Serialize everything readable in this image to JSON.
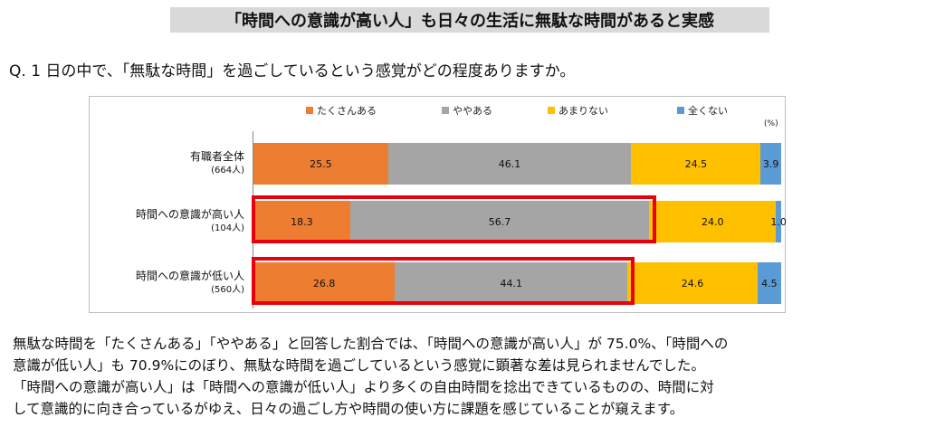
{
  "title": "「時間への意識が高い人」も日々の生活に無駄な時間があると実感",
  "question": "Q. 1 日の中で、「無駄な時間」を過ごしているという感覚がどの程度ありますか。",
  "chart_data": {
    "type": "bar",
    "orientation": "horizontal-stacked-100",
    "unit": "(%)",
    "categories": [
      {
        "label": "有職者全体",
        "n": "(664人)"
      },
      {
        "label": "時間への意識が高い人",
        "n": "(104人)"
      },
      {
        "label": "時間への意識が低い人",
        "n": "(560人)"
      }
    ],
    "series": [
      {
        "name": "たくさんある",
        "color": "#ed7d31",
        "values": [
          25.5,
          18.3,
          26.8
        ]
      },
      {
        "name": "ややある",
        "color": "#a5a5a5",
        "values": [
          46.1,
          56.7,
          44.1
        ]
      },
      {
        "name": "あまりない",
        "color": "#ffc000",
        "values": [
          24.5,
          24.0,
          24.6
        ]
      },
      {
        "name": "全くない",
        "color": "#5b9bd5",
        "values": [
          3.9,
          1.0,
          4.5
        ]
      }
    ],
    "labels": [
      [
        "25.5",
        "46.1",
        "24.5",
        "3.9"
      ],
      [
        "18.3",
        "56.7",
        "24.0",
        "1.0"
      ],
      [
        "26.8",
        "44.1",
        "24.6",
        "4.5"
      ]
    ],
    "legend_position": "top",
    "highlighted_rows": [
      1,
      2
    ],
    "highlight_color": "#e8000b"
  },
  "body": [
    "無駄な時間を「たくさんある」「ややある」と回答した割合では、「時間への意識が高い人」が 75.0%、「時間への",
    "意識が低い人」も 70.9%にのぼり、無駄な時間を過ごしているという感覚に顕著な差は見られませんでした。",
    "「時間への意識が高い人」は「時間への意識が低い人」より多くの自由時間を捻出できているものの、時間に対",
    "して意識的に向き合っているがゆえ、日々の過ごし方や時間の使い方に課題を感じていることが窺えます。"
  ]
}
